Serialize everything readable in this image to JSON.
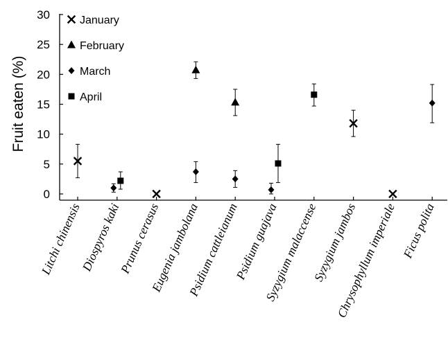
{
  "chart_data": {
    "type": "scatter",
    "title": "",
    "xlabel": "",
    "ylabel": "Fruit eaten (%)",
    "ylim": [
      0,
      30
    ],
    "yticks": [
      0,
      5,
      10,
      15,
      20,
      25,
      30
    ],
    "grid": false,
    "legend_position": "top-left",
    "categories": [
      "Litchi chinensis",
      "Diospyros kaki",
      "Prunus cerasus",
      "Eugenia jambolana",
      "Psidium cattleianum",
      "Psidium guajava",
      "Syzygium malaccense",
      "Syzygium jambos",
      "Chrysophyllum imperiale",
      "Ficus polita"
    ],
    "series": [
      {
        "name": "January",
        "marker": "x",
        "points": [
          {
            "category": "Litchi chinensis",
            "y": 5.5,
            "err_low": 2.7,
            "err_high": 8.3
          },
          {
            "category": "Prunus cerasus",
            "y": 0
          },
          {
            "category": "Syzygium jambos",
            "y": 11.8,
            "err_low": 9.6,
            "err_high": 14.0
          },
          {
            "category": "Chrysophyllum imperiale",
            "y": 0
          }
        ]
      },
      {
        "name": "February",
        "marker": "triangle",
        "points": [
          {
            "category": "Eugenia jambolana",
            "y": 20.7,
            "err_low": 19.3,
            "err_high": 22.1
          },
          {
            "category": "Psidium cattleianum",
            "y": 15.3,
            "err_low": 13.1,
            "err_high": 17.5
          }
        ]
      },
      {
        "name": "March",
        "marker": "diamond",
        "points": [
          {
            "category": "Diospyros kaki",
            "y": 1.0,
            "err_low": 0.3,
            "err_high": 1.7
          },
          {
            "category": "Eugenia jambolana",
            "y": 3.7,
            "err_low": 1.9,
            "err_high": 5.4
          },
          {
            "category": "Psidium cattleianum",
            "y": 2.5,
            "err_low": 1.1,
            "err_high": 3.9
          },
          {
            "category": "Psidium guajava",
            "y": 0.7,
            "err_low": 0.0,
            "err_high": 1.8
          },
          {
            "category": "Ficus polita",
            "y": 15.2,
            "err_low": 11.9,
            "err_high": 18.3
          }
        ]
      },
      {
        "name": "April",
        "marker": "square",
        "points": [
          {
            "category": "Diospyros kaki",
            "y": 2.2,
            "err_low": 0.8,
            "err_high": 3.7
          },
          {
            "category": "Psidium guajava",
            "y": 5.1,
            "err_low": 1.9,
            "err_high": 8.3
          },
          {
            "category": "Syzygium malaccense",
            "y": 16.6,
            "err_low": 14.7,
            "err_high": 18.4
          }
        ]
      }
    ]
  }
}
